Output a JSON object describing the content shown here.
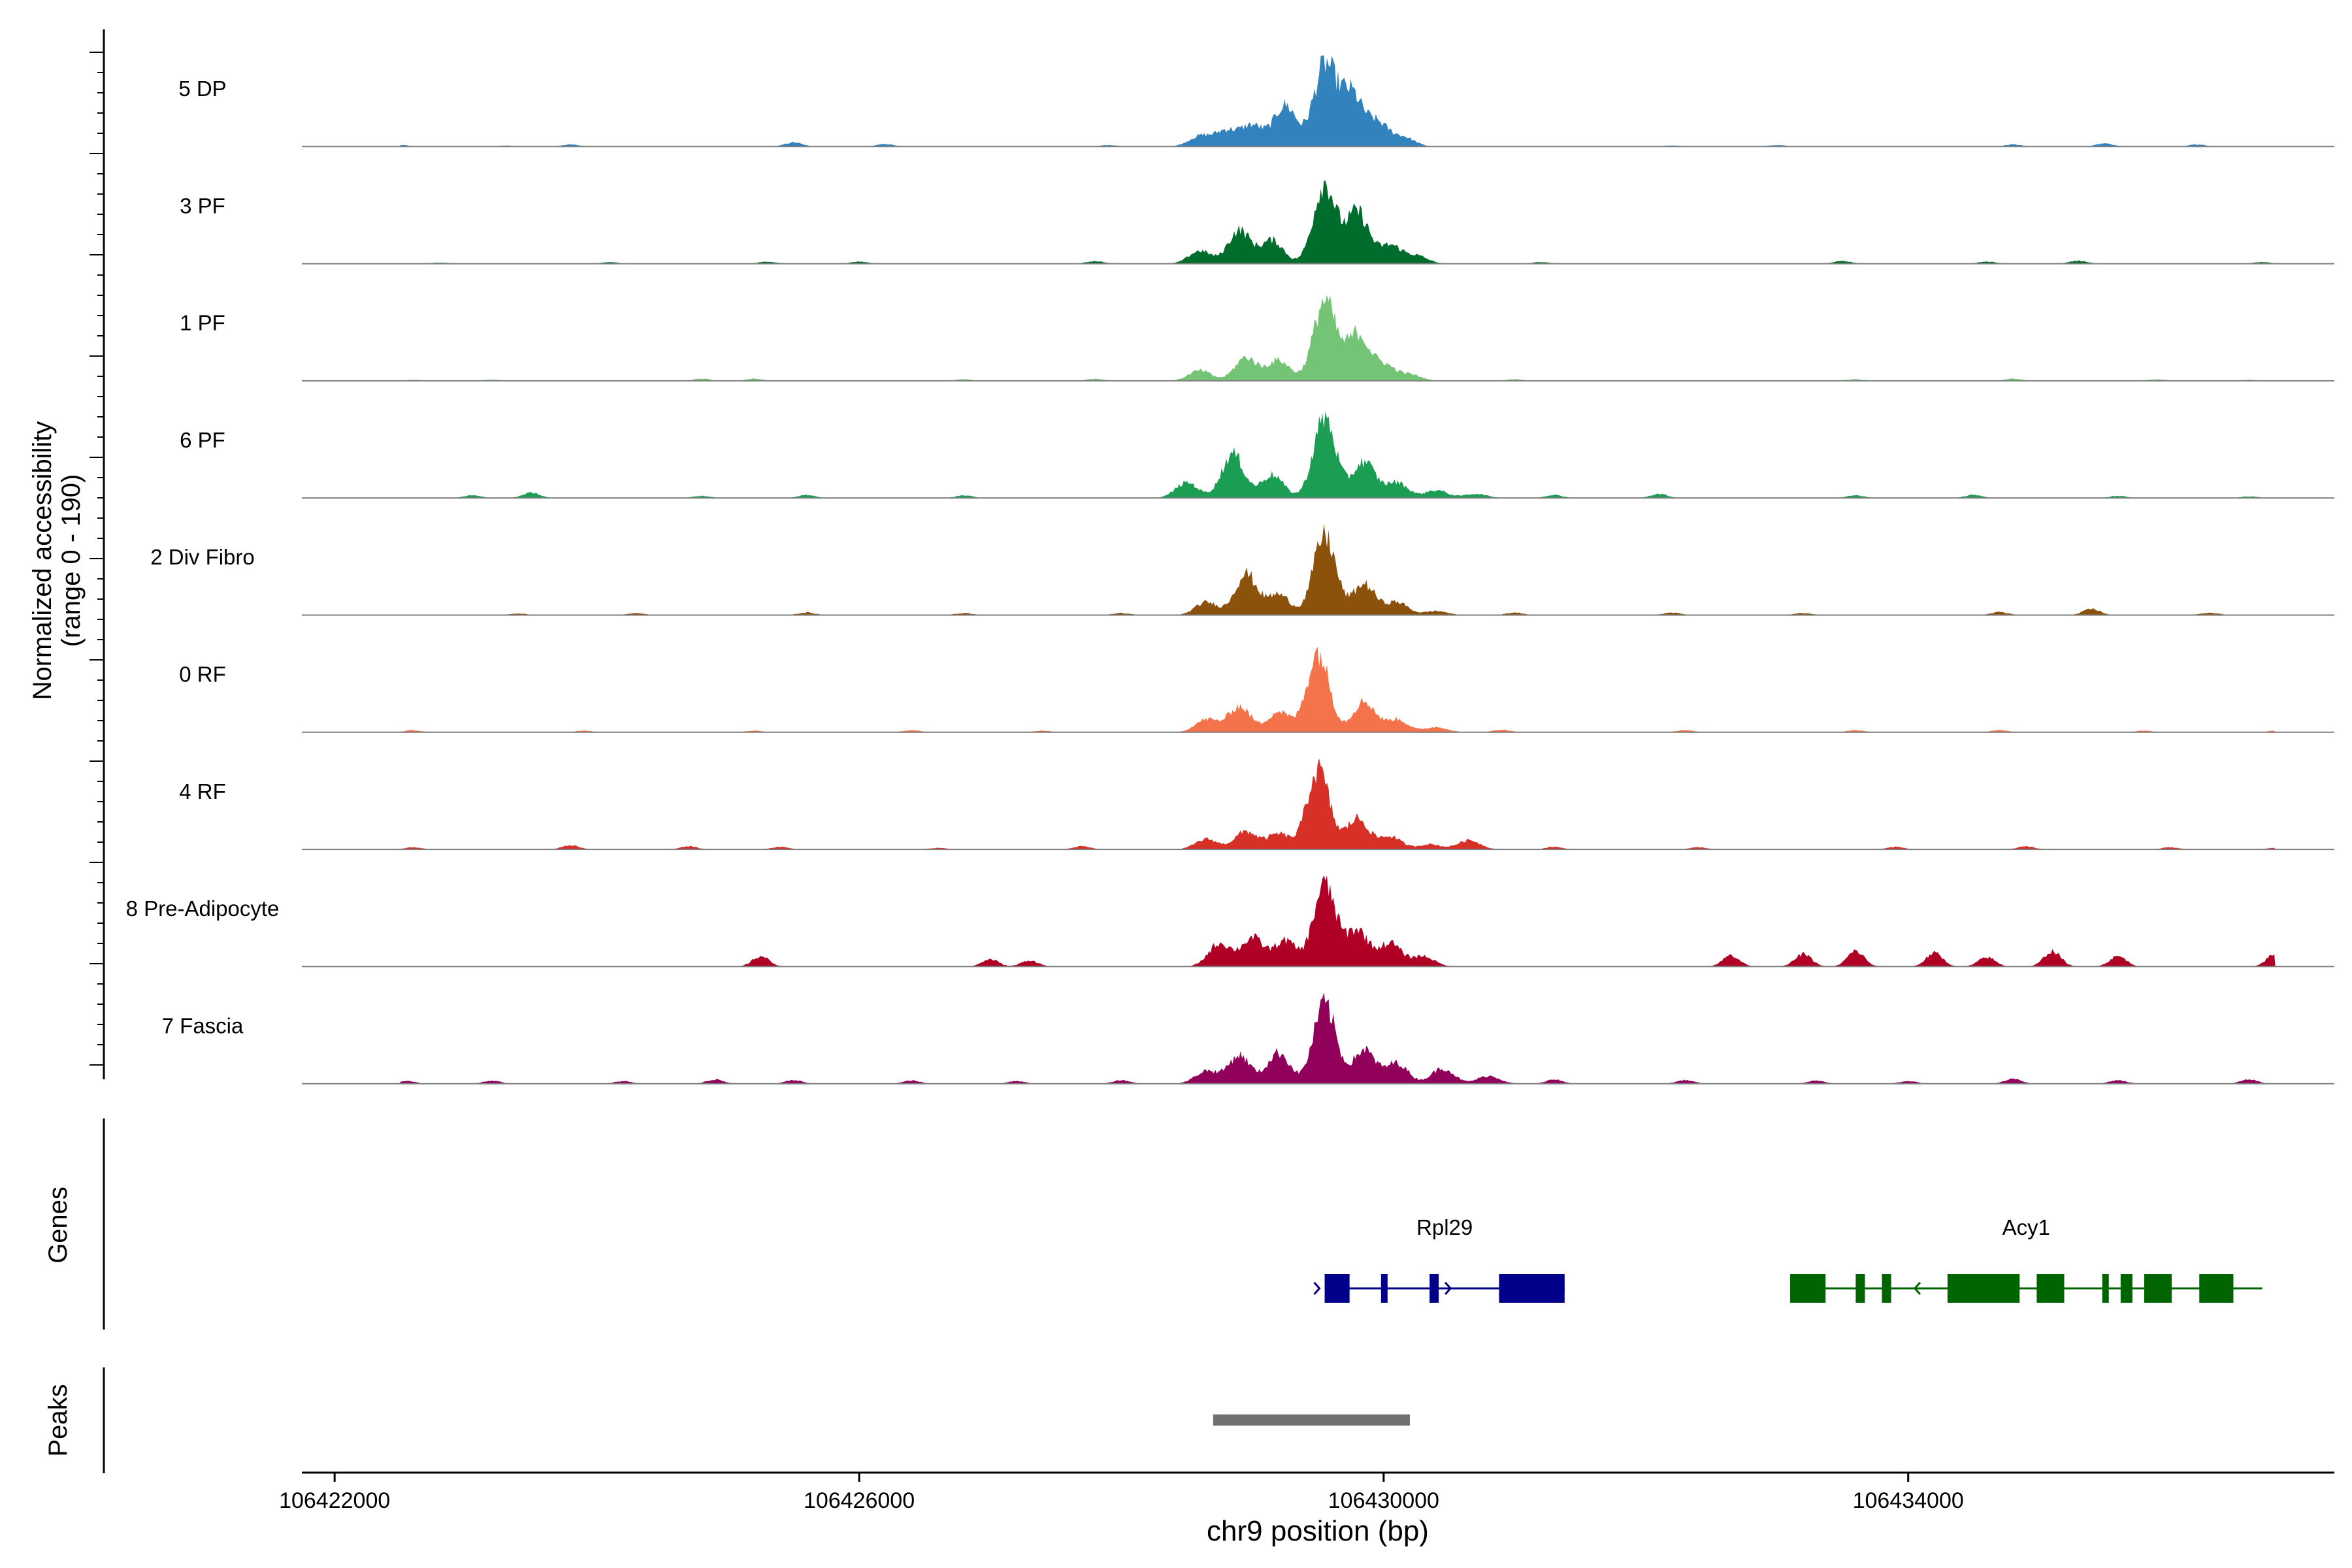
{
  "chart_data": {
    "type": "area",
    "title": "",
    "ylabel_line1": "Normalized accessibility",
    "ylabel_line2": "(range 0 - 190)",
    "xlabel": "chr9 position (bp)",
    "xlim": [
      106421750,
      106437250
    ],
    "ylim": [
      0,
      190
    ],
    "x_ticks": [
      106422000,
      106426000,
      106430000,
      106434000
    ],
    "x_tick_labels": [
      "106422000",
      "106426000",
      "106430000",
      "106434000"
    ],
    "track_labels": [
      "Genes",
      "Peaks"
    ],
    "tracks": [
      {
        "name": "5 DP",
        "color": "#3182BD",
        "peaks": [
          [
            106428600,
            20
          ],
          [
            106428800,
            30
          ],
          [
            106429000,
            40
          ],
          [
            106429250,
            80
          ],
          [
            106429550,
            155
          ],
          [
            106429750,
            100
          ],
          [
            106429950,
            45
          ],
          [
            106430150,
            18
          ]
        ],
        "background": [
          [
            106422500,
            3
          ],
          [
            106423300,
            2
          ],
          [
            106423800,
            4
          ],
          [
            106425500,
            8
          ],
          [
            106426200,
            5
          ],
          [
            106427900,
            3
          ],
          [
            106432200,
            2
          ],
          [
            106433000,
            3
          ],
          [
            106434800,
            4
          ],
          [
            106435500,
            6
          ],
          [
            106436200,
            4
          ]
        ]
      },
      {
        "name": "3 PF",
        "color": "#006D2C",
        "peaks": [
          [
            106428600,
            25
          ],
          [
            106428900,
            65
          ],
          [
            106429150,
            45
          ],
          [
            106429550,
            155
          ],
          [
            106429800,
            100
          ],
          [
            106430050,
            35
          ],
          [
            106430250,
            15
          ]
        ],
        "background": [
          [
            106422800,
            2
          ],
          [
            106424100,
            3
          ],
          [
            106425300,
            4
          ],
          [
            106426000,
            4
          ],
          [
            106427800,
            5
          ],
          [
            106431200,
            3
          ],
          [
            106433500,
            5
          ],
          [
            106434600,
            4
          ],
          [
            106435300,
            6
          ],
          [
            106436700,
            3
          ]
        ]
      },
      {
        "name": "1 PF",
        "color": "#74C476",
        "peaks": [
          [
            106428600,
            20
          ],
          [
            106428950,
            45
          ],
          [
            106429200,
            40
          ],
          [
            106429550,
            155
          ],
          [
            106429800,
            90
          ],
          [
            106430000,
            30
          ],
          [
            106430200,
            12
          ]
        ],
        "background": [
          [
            106422600,
            2
          ],
          [
            106423200,
            2
          ],
          [
            106424800,
            4
          ],
          [
            106425200,
            4
          ],
          [
            106426800,
            3
          ],
          [
            106427800,
            4
          ],
          [
            106431000,
            3
          ],
          [
            106433600,
            3
          ],
          [
            106434800,
            4
          ],
          [
            106435900,
            3
          ],
          [
            106436600,
            2
          ]
        ]
      },
      {
        "name": "6 PF",
        "color": "#1B9E53",
        "peaks": [
          [
            106428500,
            30
          ],
          [
            106428850,
            85
          ],
          [
            106429150,
            45
          ],
          [
            106429550,
            155
          ],
          [
            106429850,
            70
          ],
          [
            106430100,
            30
          ],
          [
            106430400,
            15
          ],
          [
            106430700,
            8
          ]
        ],
        "background": [
          [
            106423050,
            5
          ],
          [
            106423500,
            10
          ],
          [
            106424800,
            4
          ],
          [
            106425600,
            6
          ],
          [
            106426800,
            5
          ],
          [
            106431300,
            6
          ],
          [
            106432100,
            8
          ],
          [
            106433600,
            5
          ],
          [
            106434500,
            6
          ],
          [
            106435600,
            4
          ],
          [
            106436600,
            3
          ]
        ]
      },
      {
        "name": "2 Div Fibro",
        "color": "#8C510A",
        "peaks": [
          [
            106428650,
            25
          ],
          [
            106428950,
            80
          ],
          [
            106429200,
            40
          ],
          [
            106429550,
            155
          ],
          [
            106429850,
            60
          ],
          [
            106430100,
            25
          ],
          [
            106430400,
            8
          ]
        ],
        "background": [
          [
            106423400,
            3
          ],
          [
            106424300,
            4
          ],
          [
            106425600,
            5
          ],
          [
            106426800,
            4
          ],
          [
            106428000,
            4
          ],
          [
            106431000,
            5
          ],
          [
            106432200,
            5
          ],
          [
            106433200,
            4
          ],
          [
            106434700,
            6
          ],
          [
            106435400,
            12
          ],
          [
            106436300,
            5
          ]
        ]
      },
      {
        "name": "0 RF",
        "color": "#F4734A",
        "peaks": [
          [
            106428650,
            25
          ],
          [
            106428900,
            50
          ],
          [
            106429200,
            40
          ],
          [
            106429500,
            155
          ],
          [
            106429850,
            60
          ],
          [
            106430100,
            25
          ],
          [
            106430400,
            10
          ]
        ],
        "background": [
          [
            106422600,
            4
          ],
          [
            106423900,
            3
          ],
          [
            106425200,
            3
          ],
          [
            106426400,
            4
          ],
          [
            106427400,
            3
          ],
          [
            106430900,
            5
          ],
          [
            106432300,
            4
          ],
          [
            106433600,
            4
          ],
          [
            106434700,
            4
          ],
          [
            106435800,
            3
          ],
          [
            106436800,
            3
          ]
        ]
      },
      {
        "name": "4 RF",
        "color": "#D73027",
        "peaks": [
          [
            106428650,
            20
          ],
          [
            106428950,
            35
          ],
          [
            106429200,
            30
          ],
          [
            106429500,
            155
          ],
          [
            106429800,
            60
          ],
          [
            106430050,
            25
          ],
          [
            106430350,
            10
          ],
          [
            106430650,
            18
          ]
        ],
        "background": [
          [
            106422600,
            4
          ],
          [
            106423800,
            8
          ],
          [
            106424700,
            6
          ],
          [
            106425400,
            5
          ],
          [
            106426600,
            3
          ],
          [
            106427700,
            6
          ],
          [
            106431300,
            5
          ],
          [
            106432400,
            4
          ],
          [
            106433900,
            5
          ],
          [
            106434900,
            6
          ],
          [
            106436000,
            4
          ],
          [
            106436800,
            3
          ]
        ]
      },
      {
        "name": "8 Pre-Adipocyte",
        "color": "#B10026",
        "peaks": [
          [
            106428750,
            45
          ],
          [
            106429000,
            55
          ],
          [
            106429250,
            50
          ],
          [
            106429550,
            160
          ],
          [
            106429800,
            70
          ],
          [
            106430050,
            45
          ],
          [
            106430300,
            20
          ]
        ],
        "background": [
          [
            106425250,
            20
          ],
          [
            106427000,
            14
          ],
          [
            106427300,
            12
          ],
          [
            106432650,
            22
          ],
          [
            106433200,
            24
          ],
          [
            106433600,
            30
          ],
          [
            106434200,
            26
          ],
          [
            106434600,
            18
          ],
          [
            106435100,
            30
          ],
          [
            106435600,
            20
          ],
          [
            106436800,
            25
          ],
          [
            106437000,
            8
          ]
        ]
      },
      {
        "name": "7 Fascia",
        "color": "#91005A",
        "peaks": [
          [
            106428650,
            25
          ],
          [
            106428900,
            55
          ],
          [
            106429200,
            60
          ],
          [
            106429550,
            155
          ],
          [
            106429850,
            65
          ],
          [
            106430100,
            40
          ],
          [
            106430450,
            30
          ],
          [
            106430800,
            15
          ]
        ],
        "background": [
          [
            106422550,
            5
          ],
          [
            106423200,
            6
          ],
          [
            106424200,
            5
          ],
          [
            106424900,
            8
          ],
          [
            106425500,
            7
          ],
          [
            106426400,
            6
          ],
          [
            106427200,
            5
          ],
          [
            106428000,
            7
          ],
          [
            106431300,
            8
          ],
          [
            106432300,
            7
          ],
          [
            106433300,
            6
          ],
          [
            106434000,
            5
          ],
          [
            106434800,
            9
          ],
          [
            106435600,
            7
          ],
          [
            106436600,
            8
          ]
        ]
      }
    ],
    "genes": [
      {
        "name": "Rpl29",
        "color": "#00008B",
        "strand": "+",
        "start": 106429550,
        "end": 106431380,
        "exons": [
          [
            106429550,
            106429740
          ],
          [
            106429980,
            106430020
          ],
          [
            106430350,
            106430420
          ],
          [
            106430880,
            106431380
          ]
        ]
      },
      {
        "name": "Acy1",
        "color": "#006400",
        "strand": "-",
        "start": 106433100,
        "end": 106436700,
        "exons": [
          [
            106433100,
            106433370
          ],
          [
            106433600,
            106433670
          ],
          [
            106433800,
            106433870
          ],
          [
            106434300,
            106434850
          ],
          [
            106434980,
            106435190
          ],
          [
            106435480,
            106435530
          ],
          [
            106435620,
            106435710
          ],
          [
            106435800,
            106436010
          ],
          [
            106436220,
            106436480
          ]
        ]
      }
    ],
    "peak_regions": [
      {
        "start": 106428700,
        "end": 106430200,
        "color": "#707070"
      }
    ]
  }
}
